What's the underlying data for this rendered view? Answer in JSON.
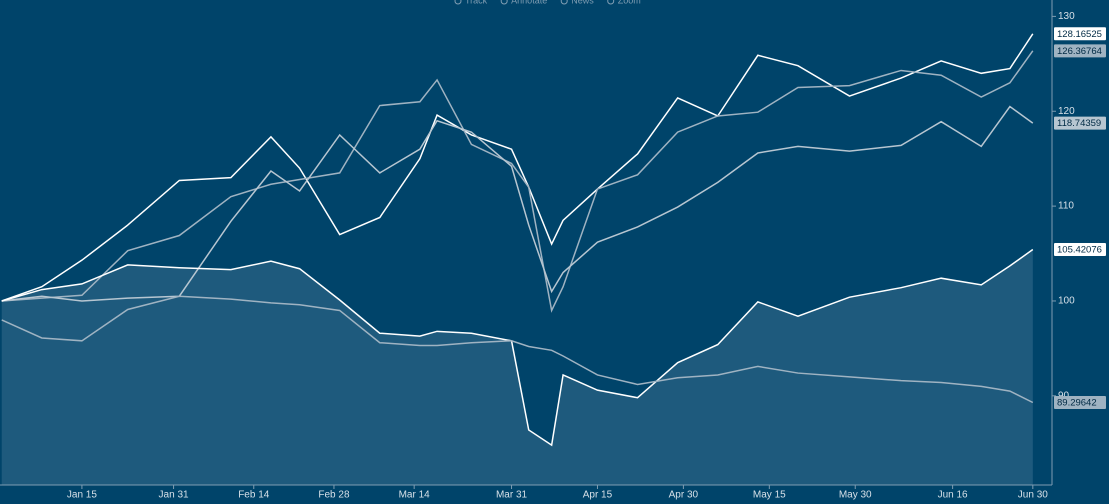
{
  "toolbar": [
    "Track",
    "Annotate",
    "News",
    "Zoom"
  ],
  "chart_data": {
    "type": "line",
    "x": [
      1,
      8,
      15,
      23,
      32,
      41,
      48,
      53,
      60,
      67,
      74,
      77,
      83,
      90,
      93,
      97,
      99,
      105,
      112,
      119,
      126,
      133,
      140,
      149,
      158,
      165,
      172,
      177,
      181
    ],
    "series": [
      {
        "color": "#ffffff",
        "values": [
          100,
          101.5,
          104.3,
          108,
          112.7,
          113,
          117.3,
          114,
          107,
          108.8,
          115,
          119.6,
          117.5,
          116,
          112,
          106,
          108.5,
          111.8,
          115.5,
          121.4,
          119.5,
          125.9,
          124.8,
          121.6,
          123.5,
          125.3,
          124,
          124.5,
          128.16525
        ]
      },
      {
        "color": "#9fb3c2",
        "values": [
          100,
          100.3,
          100.6,
          105.3,
          106.9,
          111,
          112.3,
          112.8,
          113.5,
          120.6,
          121,
          123.3,
          116.5,
          114.5,
          112,
          99,
          101.5,
          111.8,
          113.3,
          117.8,
          119.5,
          119.9,
          122.5,
          122.7,
          124.3,
          123.8,
          121.5,
          123,
          126.36764
        ]
      },
      {
        "color": "#b7c6d1",
        "values": [
          100,
          100.5,
          100,
          100.3,
          100.5,
          108.4,
          113.7,
          111.6,
          117.5,
          113.5,
          116,
          119,
          117.8,
          114.2,
          108,
          101,
          103,
          106.2,
          107.8,
          109.9,
          112.5,
          115.6,
          116.3,
          115.8,
          116.4,
          118.9,
          116.3,
          120.5,
          118.74359
        ]
      },
      {
        "color": "#ffffff",
        "area": true,
        "area_color": "#1e5a7d",
        "values": [
          100,
          101.2,
          101.8,
          103.8,
          103.5,
          103.3,
          104.2,
          103.4,
          100.1,
          96.6,
          96.3,
          96.8,
          96.6,
          95.8,
          86.4,
          84.8,
          92.2,
          90.6,
          89.8,
          93.5,
          95.4,
          99.9,
          98.4,
          100.4,
          101.4,
          102.4,
          101.7,
          103.7,
          105.42076
        ]
      },
      {
        "color": "#9fb3c2",
        "values": [
          98,
          96.1,
          95.8,
          99.1,
          100.5,
          100.2,
          99.8,
          99.6,
          99,
          95.6,
          95.3,
          95.3,
          95.6,
          95.8,
          95.2,
          94.8,
          94.2,
          92.2,
          91.2,
          91.9,
          92.2,
          93.1,
          92.4,
          92,
          91.6,
          91.4,
          91,
          90.5,
          89.29642
        ]
      }
    ],
    "xlim": [
      0.7,
      184
    ],
    "xticks": [
      {
        "value": 15,
        "label": "Jan 15"
      },
      {
        "value": 31,
        "label": "Jan 31"
      },
      {
        "value": 45,
        "label": "Feb 14"
      },
      {
        "value": 59,
        "label": "Feb 28"
      },
      {
        "value": 73,
        "label": "Mar 14"
      },
      {
        "value": 90,
        "label": "Mar 31"
      },
      {
        "value": 105,
        "label": "Apr 15"
      },
      {
        "value": 120,
        "label": "Apr 30"
      },
      {
        "value": 135,
        "label": "May 15"
      },
      {
        "value": 150,
        "label": "May 30"
      },
      {
        "value": 167,
        "label": "Jun 16"
      },
      {
        "value": 181,
        "label": "Jun 30"
      }
    ],
    "ylim": [
      80.6,
      131.2
    ],
    "yticks": [
      90,
      100,
      110,
      120,
      130
    ],
    "background": "#00446a"
  }
}
